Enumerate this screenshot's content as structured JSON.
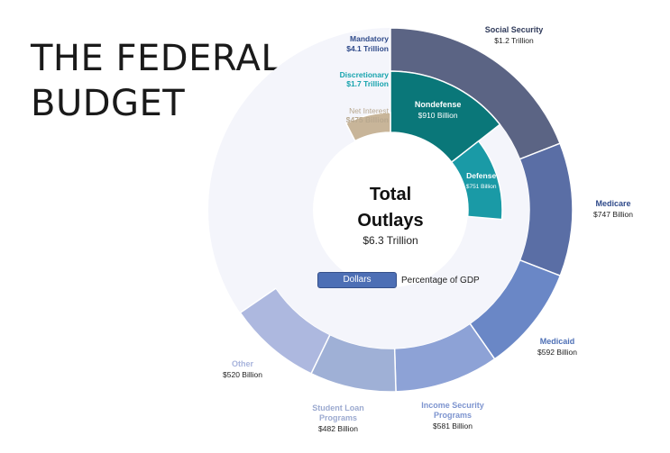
{
  "title": {
    "line1": "THE FEDERAL",
    "line2": "BUDGET"
  },
  "center": {
    "heading_line1": "Total",
    "heading_line2": "Outlays",
    "amount": "$6.3 Trillion"
  },
  "toggle": {
    "active": "Dollars",
    "other": "Percentage of GDP"
  },
  "chart_data": {
    "type": "sunburst",
    "total_trillion": 6.3,
    "inner_ring": [
      {
        "name": "Mandatory",
        "label": "Mandatory",
        "value_label": "$4.1 Trillion",
        "value": 4.1,
        "color": "#aeb7df"
      },
      {
        "name": "Discretionary",
        "label": "Discretionary",
        "value_label": "$1.7 Trillion",
        "value": 1.7,
        "color": "#0e8f95"
      },
      {
        "name": "Net Interest",
        "label": "Net Interest",
        "value_label": "$475 Billion",
        "value": 0.475,
        "color": "#c8b599"
      }
    ],
    "discretionary_breakdown": [
      {
        "name": "Nondefense",
        "value_label": "$910 Billion",
        "value": 0.91,
        "color": "#0a7779"
      },
      {
        "name": "Defense",
        "value_label": "$751 Billion",
        "value": 0.751,
        "color": "#1a9aa6"
      }
    ],
    "outer_ring": [
      {
        "name": "Social Security",
        "label": "Social Security",
        "value_label": "$1.2 Trillion",
        "value": 1.2,
        "color": "#5b6484",
        "label_color": "#2f3a5a"
      },
      {
        "name": "Medicare",
        "label": "Medicare",
        "value_label": "$747 Billion",
        "value": 0.747,
        "color": "#5a6ea5",
        "label_color": "#2f4a8a"
      },
      {
        "name": "Medicaid",
        "label": "Medicaid",
        "value_label": "$592 Billion",
        "value": 0.592,
        "color": "#6a87c6",
        "label_color": "#4d6fb5"
      },
      {
        "name": "Income Security Programs",
        "label": "Income Security\nPrograms",
        "value_label": "$581 Billion",
        "value": 0.581,
        "color": "#8da2d6",
        "label_color": "#7d94cf"
      },
      {
        "name": "Student Loan Programs",
        "label": "Student Loan\nPrograms",
        "value_label": "$482 Billion",
        "value": 0.482,
        "color": "#9fb0d6",
        "label_color": "#9caad0"
      },
      {
        "name": "Other",
        "label": "Other",
        "value_label": "$520 Billion",
        "value": 0.52,
        "color": "#adb8df",
        "label_color": "#a8b4dc"
      }
    ],
    "remainder_color": "#f4f5fb"
  }
}
